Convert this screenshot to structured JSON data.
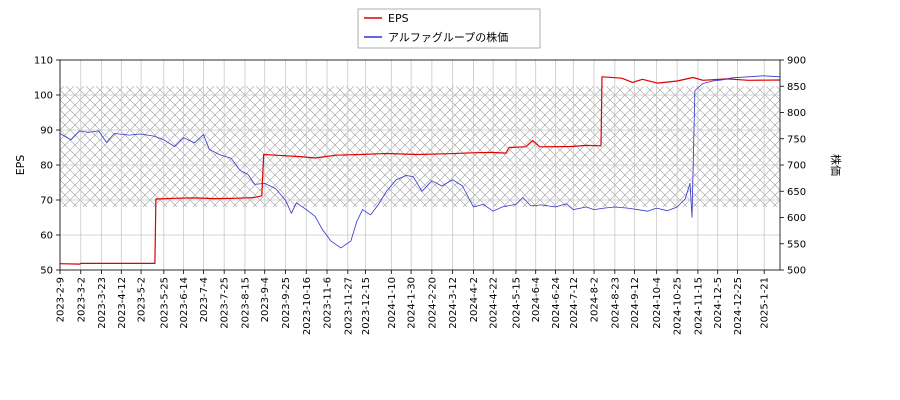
{
  "chart_data": {
    "type": "line",
    "title": "",
    "xlabel": "",
    "ylabel_left": "EPS",
    "ylabel_right": "株価",
    "ylim_left": [
      50,
      110
    ],
    "ylim_right": [
      500,
      900
    ],
    "yticks_left": [
      50,
      60,
      70,
      80,
      90,
      100,
      110
    ],
    "yticks_right": [
      500,
      550,
      600,
      650,
      700,
      750,
      800,
      850,
      900
    ],
    "x_range": [
      "2023-02-09",
      "2025-02-06"
    ],
    "x_ticks": [
      "2023-2-9",
      "2023-3-2",
      "2023-3-23",
      "2023-4-12",
      "2023-5-2",
      "2023-5-25",
      "2023-6-14",
      "2023-7-4",
      "2023-7-25",
      "2023-8-15",
      "2023-9-4",
      "2023-9-25",
      "2023-10-16",
      "2023-11-6",
      "2023-11-27",
      "2023-12-15",
      "2024-1-10",
      "2024-1-30",
      "2024-2-20",
      "2024-3-12",
      "2024-4-2",
      "2024-4-22",
      "2024-5-15",
      "2024-6-4",
      "2024-6-24",
      "2024-7-12",
      "2024-8-2",
      "2024-8-23",
      "2024-9-12",
      "2024-10-4",
      "2024-10-25",
      "2024-11-15",
      "2024-12-5",
      "2024-12-25",
      "2025-1-21"
    ],
    "grid": true,
    "legend_position": "top-center",
    "hatch_band_right": [
      620,
      850
    ],
    "series": [
      {
        "name": "EPS",
        "axis": "left",
        "color": "#dd0000",
        "points": [
          [
            "2023-02-09",
            51.8
          ],
          [
            "2023-03-01",
            51.7
          ],
          [
            "2023-03-02",
            51.9
          ],
          [
            "2023-05-16",
            51.9
          ],
          [
            "2023-05-17",
            70.3
          ],
          [
            "2023-06-05",
            70.5
          ],
          [
            "2023-06-25",
            70.6
          ],
          [
            "2023-07-15",
            70.4
          ],
          [
            "2023-08-04",
            70.5
          ],
          [
            "2023-08-24",
            70.7
          ],
          [
            "2023-09-01",
            71.2
          ],
          [
            "2023-09-03",
            83.0
          ],
          [
            "2023-09-15",
            82.8
          ],
          [
            "2023-10-10",
            82.4
          ],
          [
            "2023-10-25",
            82.0
          ],
          [
            "2023-11-15",
            82.8
          ],
          [
            "2023-12-10",
            83.0
          ],
          [
            "2024-01-05",
            83.3
          ],
          [
            "2024-02-05",
            83.0
          ],
          [
            "2024-03-05",
            83.2
          ],
          [
            "2024-04-01",
            83.5
          ],
          [
            "2024-04-20",
            83.6
          ],
          [
            "2024-05-05",
            83.4
          ],
          [
            "2024-05-08",
            85.0
          ],
          [
            "2024-05-25",
            85.2
          ],
          [
            "2024-06-01",
            87.0
          ],
          [
            "2024-06-08",
            85.2
          ],
          [
            "2024-07-10",
            85.3
          ],
          [
            "2024-07-25",
            85.6
          ],
          [
            "2024-08-09",
            85.5
          ],
          [
            "2024-08-10",
            105.2
          ],
          [
            "2024-08-30",
            104.8
          ],
          [
            "2024-09-10",
            103.6
          ],
          [
            "2024-09-20",
            104.5
          ],
          [
            "2024-10-05",
            103.4
          ],
          [
            "2024-10-25",
            104.0
          ],
          [
            "2024-11-10",
            105.0
          ],
          [
            "2024-11-20",
            104.2
          ],
          [
            "2024-12-15",
            104.6
          ],
          [
            "2025-01-05",
            104.2
          ],
          [
            "2025-02-06",
            104.3
          ]
        ]
      },
      {
        "name": "アルファグループの株価",
        "axis": "right",
        "color": "#3333cc",
        "points": [
          [
            "2023-02-09",
            760
          ],
          [
            "2023-02-20",
            748
          ],
          [
            "2023-03-01",
            765
          ],
          [
            "2023-03-10",
            762
          ],
          [
            "2023-03-20",
            765
          ],
          [
            "2023-03-28",
            743
          ],
          [
            "2023-04-05",
            760
          ],
          [
            "2023-04-20",
            757
          ],
          [
            "2023-05-01",
            759
          ],
          [
            "2023-05-15",
            755
          ],
          [
            "2023-05-25",
            748
          ],
          [
            "2023-06-05",
            735
          ],
          [
            "2023-06-14",
            752
          ],
          [
            "2023-06-25",
            742
          ],
          [
            "2023-07-04",
            758
          ],
          [
            "2023-07-10",
            730
          ],
          [
            "2023-07-20",
            720
          ],
          [
            "2023-08-01",
            713
          ],
          [
            "2023-08-10",
            690
          ],
          [
            "2023-08-18",
            682
          ],
          [
            "2023-08-25",
            663
          ],
          [
            "2023-09-04",
            665
          ],
          [
            "2023-09-15",
            655
          ],
          [
            "2023-09-25",
            633
          ],
          [
            "2023-10-01",
            608
          ],
          [
            "2023-10-06",
            628
          ],
          [
            "2023-10-16",
            615
          ],
          [
            "2023-10-25",
            602
          ],
          [
            "2023-11-01",
            578
          ],
          [
            "2023-11-10",
            555
          ],
          [
            "2023-11-20",
            542
          ],
          [
            "2023-11-30",
            555
          ],
          [
            "2023-12-06",
            592
          ],
          [
            "2023-12-12",
            615
          ],
          [
            "2023-12-20",
            605
          ],
          [
            "2023-12-28",
            625
          ],
          [
            "2024-01-05",
            650
          ],
          [
            "2024-01-15",
            672
          ],
          [
            "2024-01-25",
            680
          ],
          [
            "2024-02-01",
            678
          ],
          [
            "2024-02-10",
            650
          ],
          [
            "2024-02-20",
            670
          ],
          [
            "2024-03-01",
            660
          ],
          [
            "2024-03-12",
            672
          ],
          [
            "2024-03-22",
            660
          ],
          [
            "2024-04-02",
            620
          ],
          [
            "2024-04-12",
            625
          ],
          [
            "2024-04-22",
            612
          ],
          [
            "2024-05-01",
            620
          ],
          [
            "2024-05-15",
            625
          ],
          [
            "2024-05-22",
            638
          ],
          [
            "2024-05-30",
            622
          ],
          [
            "2024-06-10",
            624
          ],
          [
            "2024-06-24",
            620
          ],
          [
            "2024-07-05",
            626
          ],
          [
            "2024-07-12",
            615
          ],
          [
            "2024-07-25",
            620
          ],
          [
            "2024-08-02",
            615
          ],
          [
            "2024-08-12",
            618
          ],
          [
            "2024-08-23",
            620
          ],
          [
            "2024-09-05",
            618
          ],
          [
            "2024-09-12",
            616
          ],
          [
            "2024-09-25",
            612
          ],
          [
            "2024-10-04",
            618
          ],
          [
            "2024-10-15",
            613
          ],
          [
            "2024-10-25",
            620
          ],
          [
            "2024-11-02",
            635
          ],
          [
            "2024-11-07",
            665
          ],
          [
            "2024-11-09",
            600
          ],
          [
            "2024-11-12",
            842
          ],
          [
            "2024-11-20",
            855
          ],
          [
            "2024-11-30",
            860
          ],
          [
            "2024-12-10",
            862
          ],
          [
            "2024-12-20",
            866
          ],
          [
            "2025-01-05",
            868
          ],
          [
            "2025-01-20",
            870
          ],
          [
            "2025-02-06",
            868
          ]
        ]
      }
    ]
  }
}
